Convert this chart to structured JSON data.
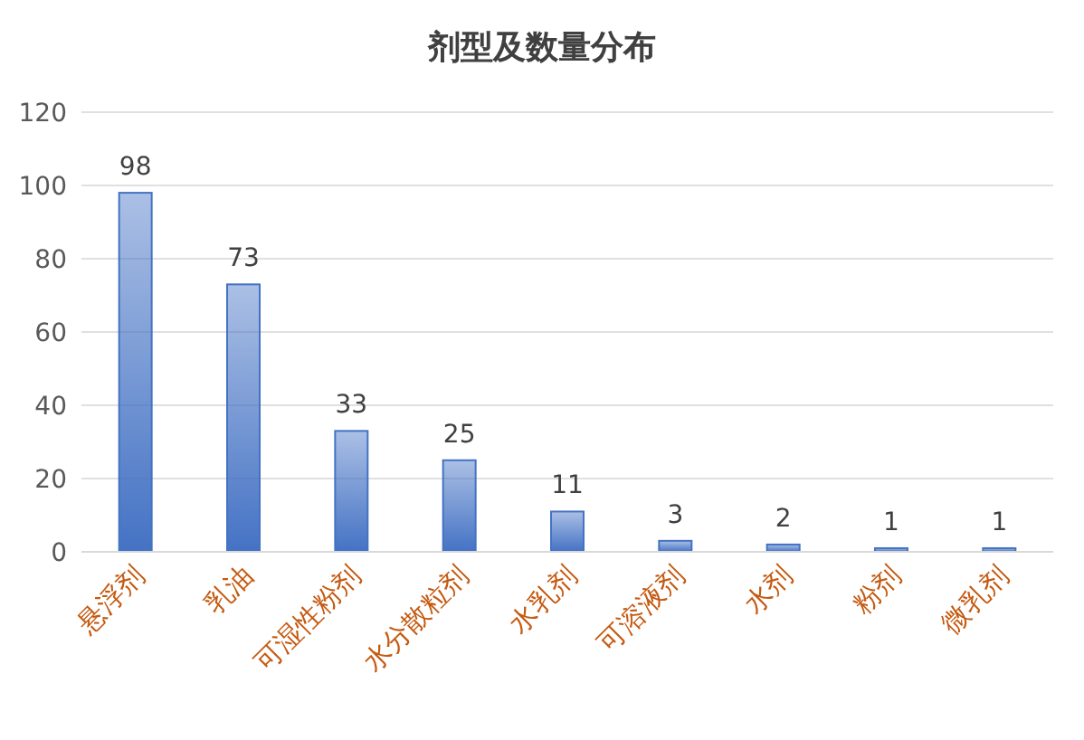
{
  "chart_data": {
    "type": "bar",
    "title": "剂型及数量分布",
    "categories": [
      "悬浮剂",
      "乳油",
      "可湿性粉剂",
      "水分散粒剂",
      "水乳剂",
      "可溶液剂",
      "水剂",
      "粉剂",
      "微乳剂"
    ],
    "values": [
      98,
      73,
      33,
      25,
      11,
      3,
      2,
      1,
      1
    ],
    "color": "#4472c4",
    "ylim": [
      0,
      120
    ],
    "yticks": [
      0,
      20,
      40,
      60,
      80,
      100,
      120
    ],
    "grid": "y",
    "data_labels": true
  }
}
